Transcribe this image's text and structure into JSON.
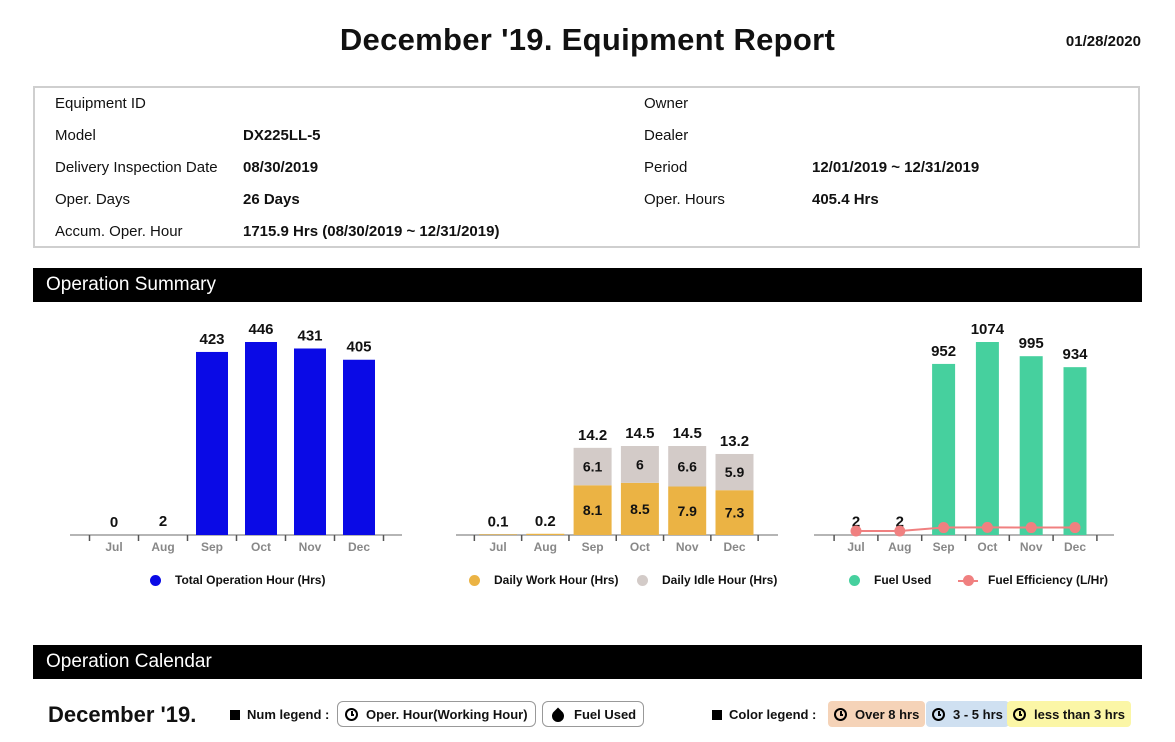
{
  "header": {
    "title": "December '19. Equipment Report",
    "date": "01/28/2020"
  },
  "info": {
    "equipment_id_label": "Equipment ID",
    "equipment_id": "",
    "model_label": "Model",
    "model": "DX225LL-5",
    "delivery_label": "Delivery Inspection Date",
    "delivery": "08/30/2019",
    "oper_days_label": "Oper. Days",
    "oper_days": "26 Days",
    "accum_label": "Accum. Oper. Hour",
    "accum": "1715.9 Hrs (08/30/2019 ~ 12/31/2019)",
    "owner_label": "Owner",
    "owner": "",
    "dealer_label": "Dealer",
    "dealer": "",
    "period_label": "Period",
    "period": "12/01/2019 ~ 12/31/2019",
    "oper_hours_label": "Oper. Hours",
    "oper_hours": "405.4  Hrs"
  },
  "sections": {
    "summary": "Operation Summary",
    "calendar": "Operation Calendar"
  },
  "chart_data": [
    {
      "type": "bar",
      "categories": [
        "Jul",
        "Aug",
        "Sep",
        "Oct",
        "Nov",
        "Dec"
      ],
      "series": [
        {
          "name": "Total Operation Hour (Hrs)",
          "values": [
            0,
            2,
            423,
            446,
            431,
            405
          ],
          "color": "#0a0ae6"
        }
      ]
    },
    {
      "type": "bar",
      "stacked": true,
      "categories": [
        "Jul",
        "Aug",
        "Sep",
        "Oct",
        "Nov",
        "Dec"
      ],
      "totals": [
        "0.1",
        "0.2",
        "14.2",
        "14.5",
        "14.5",
        "13.2"
      ],
      "series": [
        {
          "name": "Daily Work Hour (Hrs)",
          "values": [
            0.1,
            0.2,
            8.1,
            8.5,
            7.9,
            7.3
          ],
          "color": "#ebb344"
        },
        {
          "name": "Daily Idle Hour (Hrs)",
          "values": [
            0,
            0,
            6.1,
            6,
            6.6,
            5.9
          ],
          "color": "#d3cbc8"
        }
      ]
    },
    {
      "type": "bar",
      "categories": [
        "Jul",
        "Aug",
        "Sep",
        "Oct",
        "Nov",
        "Dec"
      ],
      "series": [
        {
          "name": "Fuel Used",
          "values": [
            2,
            2,
            952,
            1074,
            995,
            934
          ],
          "color": "#46d09e"
        },
        {
          "name": "Fuel Efficiency (L/Hr)",
          "type": "line",
          "values": [
            0,
            0,
            2.3,
            2.4,
            2.3,
            2.3
          ],
          "color": "#f08080"
        }
      ]
    }
  ],
  "calendar": {
    "month": "December '19.",
    "num_legend_label": "Num legend :",
    "num_legend_oper": "Oper. Hour(Working Hour)",
    "num_legend_fuel": "Fuel Used",
    "color_legend_label": "Color legend :",
    "color_over8": "Over 8 hrs",
    "color_3to5": "3 - 5 hrs",
    "color_less3": "less than 3 hrs",
    "colors": {
      "over8": "#f5d3b8",
      "3to5": "#cfe0f1",
      "less3": "#fbf6a6"
    }
  }
}
